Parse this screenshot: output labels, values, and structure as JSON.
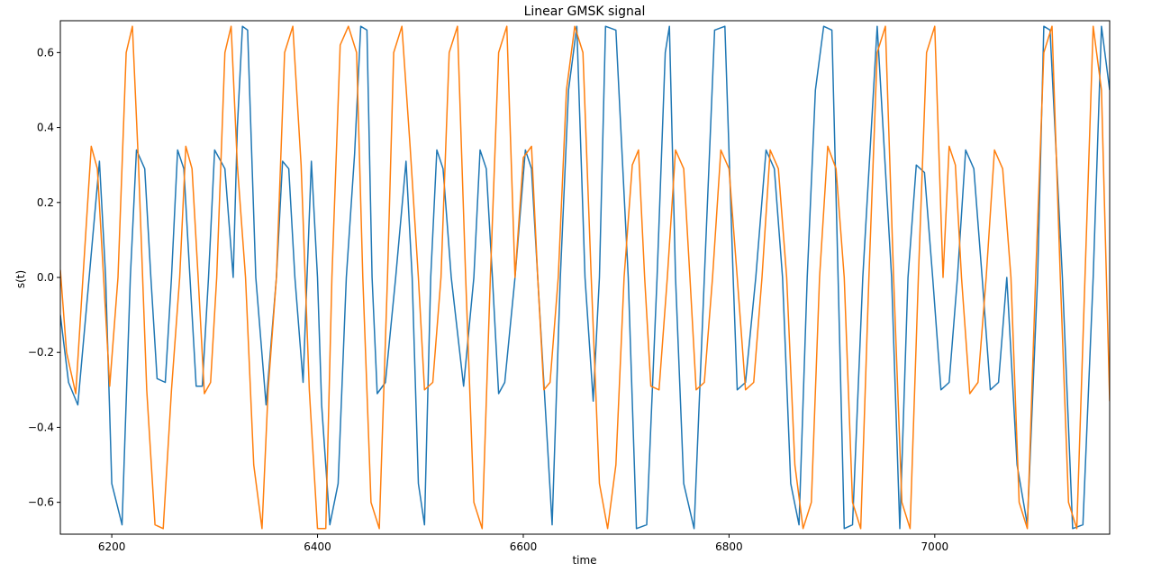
{
  "chart_data": {
    "type": "line",
    "title": "Linear GMSK signal",
    "xlabel": "time",
    "ylabel": "s(t)",
    "xlim": [
      6150,
      7170
    ],
    "ylim": [
      -0.685,
      0.685
    ],
    "xticks": [
      6200,
      6400,
      6600,
      6800,
      7000
    ],
    "yticks": [
      -0.6,
      -0.4,
      -0.2,
      0.0,
      0.2,
      0.4,
      0.6
    ],
    "xtick_labels": [
      "6200",
      "6400",
      "6600",
      "6800",
      "7000"
    ],
    "ytick_labels": [
      "−0.6",
      "−0.4",
      "−0.2",
      "0.0",
      "0.2",
      "0.4",
      "0.6"
    ],
    "grid": false,
    "legend": "none",
    "series": [
      {
        "color": "#1f77b4",
        "x": [
          6150,
          6158,
          6167,
          6178,
          6188,
          6194,
          6200,
          6210,
          6218,
          6224,
          6232,
          6238,
          6244,
          6252,
          6258,
          6264,
          6270,
          6276,
          6282,
          6288,
          6294,
          6300,
          6310,
          6318,
          6322,
          6327,
          6332,
          6340,
          6350,
          6360,
          6366,
          6372,
          6378,
          6386,
          6394,
          6400,
          6404,
          6412,
          6420,
          6428,
          6436,
          6442,
          6448,
          6453,
          6458,
          6466,
          6476,
          6486,
          6492,
          6498,
          6504,
          6510,
          6516,
          6522,
          6530,
          6542,
          6552,
          6558,
          6564,
          6570,
          6576,
          6582,
          6592,
          6602,
          6608,
          6614,
          6620,
          6628,
          6636,
          6644,
          6652,
          6660,
          6668,
          6674,
          6680,
          6690,
          6702,
          6710,
          6720,
          6730,
          6738,
          6742,
          6748,
          6756,
          6766,
          6776,
          6786,
          6796,
          6804,
          6808,
          6816,
          6826,
          6836,
          6844,
          6852,
          6860,
          6868,
          6876,
          6884,
          6892,
          6900,
          6906,
          6912,
          6920,
          6930,
          6944,
          6958,
          6966,
          6974,
          6982,
          6990,
          6998,
          7006,
          7014,
          7022,
          7030,
          7038,
          7046,
          7054,
          7062,
          7070,
          7080,
          7090,
          7100,
          7106,
          7112,
          7124,
          7134,
          7144,
          7154,
          7162,
          7170
        ],
        "y": [
          -0.1,
          -0.28,
          -0.34,
          0.0,
          0.31,
          0.0,
          -0.55,
          -0.66,
          0.0,
          0.34,
          0.29,
          0.0,
          -0.27,
          -0.28,
          0.0,
          0.34,
          0.29,
          0.0,
          -0.29,
          -0.29,
          0.0,
          0.34,
          0.29,
          0.0,
          0.4,
          0.67,
          0.66,
          0.0,
          -0.34,
          0.0,
          0.31,
          0.29,
          0.0,
          -0.28,
          0.31,
          0.0,
          -0.34,
          -0.66,
          -0.55,
          0.0,
          0.33,
          0.67,
          0.66,
          0.0,
          -0.31,
          -0.28,
          0.0,
          0.31,
          0.0,
          -0.55,
          -0.66,
          0.0,
          0.34,
          0.29,
          0.0,
          -0.29,
          0.0,
          0.34,
          0.29,
          0.0,
          -0.31,
          -0.28,
          0.0,
          0.34,
          0.29,
          0.0,
          -0.28,
          -0.66,
          0.0,
          0.5,
          0.67,
          0.0,
          -0.33,
          0.0,
          0.67,
          0.66,
          0.0,
          -0.67,
          -0.66,
          0.0,
          0.6,
          0.67,
          0.0,
          -0.55,
          -0.67,
          0.0,
          0.66,
          0.67,
          0.0,
          -0.3,
          -0.28,
          0.0,
          0.34,
          0.29,
          0.0,
          -0.55,
          -0.66,
          0.0,
          0.5,
          0.67,
          0.66,
          0.0,
          -0.67,
          -0.66,
          0.0,
          0.67,
          0.0,
          -0.67,
          0.0,
          0.3,
          0.28,
          0.0,
          -0.3,
          -0.28,
          0.0,
          0.34,
          0.29,
          0.0,
          -0.3,
          -0.28,
          0.0,
          -0.5,
          -0.66,
          0.0,
          0.67,
          0.66,
          0.0,
          -0.67,
          -0.66,
          0.0,
          0.67,
          0.5
        ]
      },
      {
        "color": "#ff7f0e",
        "x": [
          6150,
          6156,
          6165,
          6172,
          6180,
          6186,
          6192,
          6198,
          6206,
          6214,
          6220,
          6226,
          6234,
          6242,
          6250,
          6258,
          6266,
          6272,
          6278,
          6284,
          6290,
          6296,
          6302,
          6310,
          6316,
          6322,
          6330,
          6338,
          6346,
          6352,
          6360,
          6368,
          6376,
          6384,
          6392,
          6400,
          6408,
          6414,
          6422,
          6430,
          6438,
          6444,
          6452,
          6460,
          6468,
          6474,
          6482,
          6490,
          6498,
          6504,
          6512,
          6520,
          6528,
          6536,
          6544,
          6552,
          6560,
          6568,
          6576,
          6584,
          6592,
          6600,
          6608,
          6614,
          6620,
          6626,
          6634,
          6642,
          6650,
          6658,
          6666,
          6674,
          6682,
          6690,
          6698,
          6706,
          6712,
          6718,
          6724,
          6732,
          6740,
          6748,
          6756,
          6762,
          6768,
          6776,
          6784,
          6792,
          6800,
          6808,
          6816,
          6824,
          6832,
          6840,
          6848,
          6856,
          6864,
          6872,
          6880,
          6888,
          6896,
          6904,
          6912,
          6920,
          6928,
          6936,
          6944,
          6952,
          6960,
          6968,
          6976,
          6984,
          6992,
          7000,
          7008,
          7014,
          7020,
          7026,
          7034,
          7042,
          7050,
          7058,
          7066,
          7074,
          7082,
          7090,
          7098,
          7106,
          7114,
          7122,
          7130,
          7138,
          7146,
          7154,
          7162,
          7170
        ],
        "y": [
          0.02,
          -0.2,
          -0.31,
          0.0,
          0.35,
          0.29,
          0.0,
          -0.29,
          0.0,
          0.6,
          0.67,
          0.3,
          -0.3,
          -0.66,
          -0.67,
          -0.3,
          0.0,
          0.35,
          0.29,
          0.0,
          -0.31,
          -0.28,
          0.0,
          0.6,
          0.67,
          0.3,
          0.0,
          -0.5,
          -0.67,
          -0.3,
          0.0,
          0.6,
          0.67,
          0.3,
          -0.3,
          -0.67,
          -0.67,
          0.0,
          0.62,
          0.67,
          0.6,
          0.0,
          -0.6,
          -0.67,
          0.0,
          0.6,
          0.67,
          0.35,
          0.0,
          -0.3,
          -0.28,
          0.0,
          0.6,
          0.67,
          0.0,
          -0.6,
          -0.67,
          0.0,
          0.6,
          0.67,
          0.0,
          0.32,
          0.35,
          0.0,
          -0.3,
          -0.28,
          0.0,
          0.5,
          0.67,
          0.6,
          0.0,
          -0.55,
          -0.67,
          -0.5,
          0.0,
          0.3,
          0.34,
          0.0,
          -0.29,
          -0.3,
          0.0,
          0.34,
          0.29,
          0.0,
          -0.3,
          -0.28,
          0.0,
          0.34,
          0.29,
          0.0,
          -0.3,
          -0.28,
          0.0,
          0.34,
          0.29,
          0.0,
          -0.5,
          -0.67,
          -0.6,
          0.0,
          0.35,
          0.29,
          0.0,
          -0.6,
          -0.67,
          0.0,
          0.6,
          0.67,
          0.0,
          -0.6,
          -0.67,
          0.0,
          0.6,
          0.67,
          0.0,
          0.35,
          0.3,
          0.0,
          -0.31,
          -0.28,
          0.0,
          0.34,
          0.29,
          0.0,
          -0.6,
          -0.67,
          0.0,
          0.6,
          0.67,
          0.0,
          -0.6,
          -0.67,
          0.0,
          0.67,
          0.5,
          -0.33
        ]
      }
    ]
  }
}
